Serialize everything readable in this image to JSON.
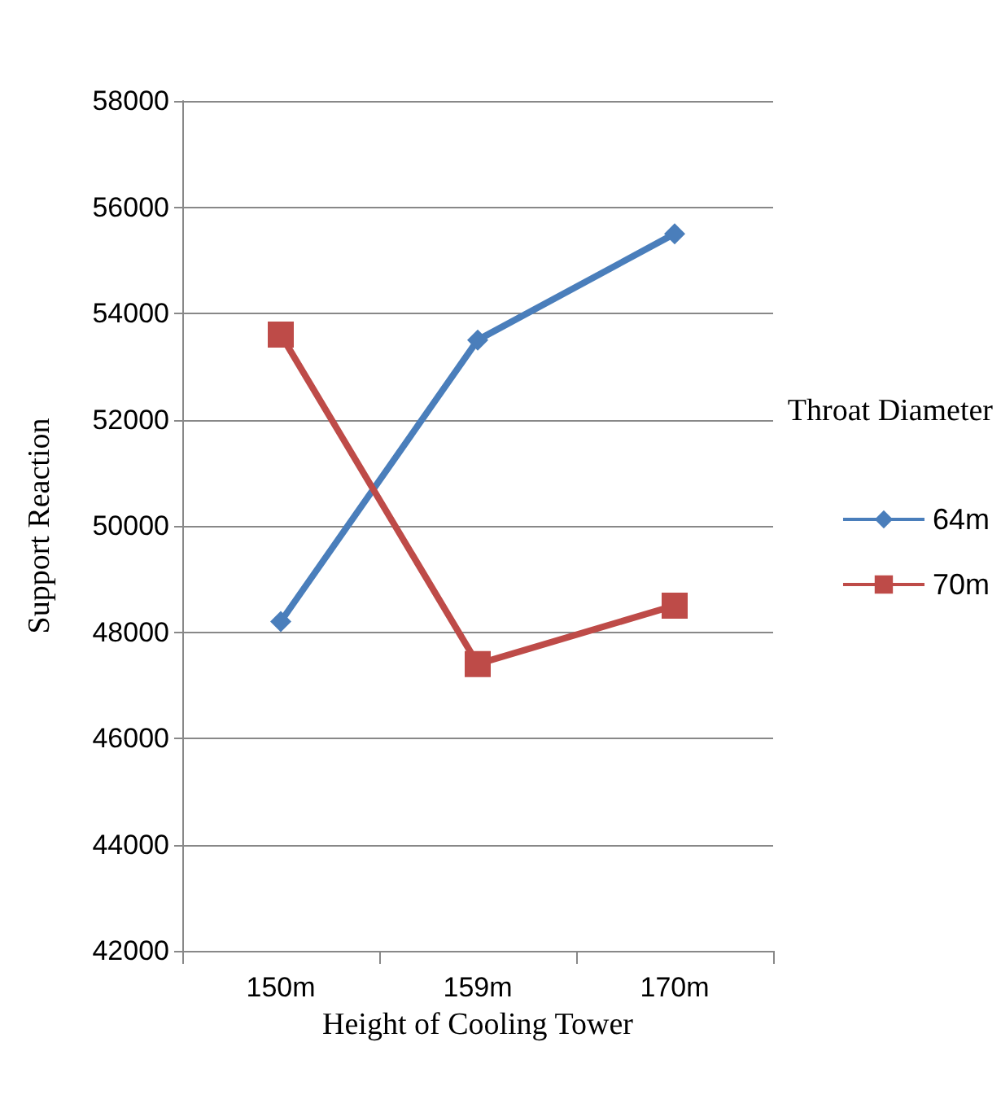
{
  "chart_data": {
    "type": "line",
    "xlabel": "Height of Cooling Tower",
    "ylabel": "Support Reaction",
    "legend_title": "Throat Diameter",
    "categories": [
      "150m",
      "159m",
      "170m"
    ],
    "series": [
      {
        "name": "64m",
        "color": "#4a7ebb",
        "marker": "diamond",
        "values": [
          48200,
          53500,
          55500
        ]
      },
      {
        "name": "70m",
        "color": "#be4b48",
        "marker": "square",
        "values": [
          53600,
          47400,
          48500
        ]
      }
    ],
    "ylim": [
      42000,
      58000
    ],
    "yticks": [
      42000,
      44000,
      46000,
      48000,
      50000,
      52000,
      54000,
      56000,
      58000
    ],
    "grid": "y",
    "legend": "right",
    "line_style": "solid"
  }
}
